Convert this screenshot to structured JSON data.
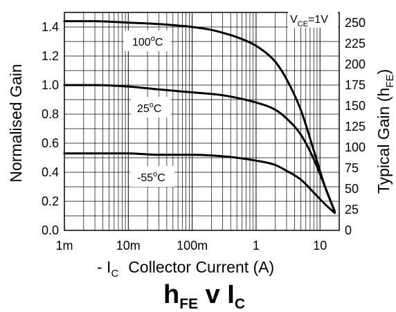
{
  "chart_data": {
    "type": "line",
    "title_main": "h",
    "title_main_sub": "FE",
    "title_mid": " v I",
    "title_end_sub": "C",
    "xlabel_prefix": "- I",
    "xlabel_sub": "C",
    "xlabel_text": "Collector Current (A)",
    "ylabel": "Normalised Gain",
    "y2label_main": "Typical Gain (h",
    "y2label_sub": "FE",
    "y2label_end": ")",
    "x_scale": "log",
    "xlim": [
      0.001,
      20
    ],
    "ylim": [
      0,
      1.5
    ],
    "y2lim": [
      0,
      262.5
    ],
    "grid": true,
    "x_ticks": [
      {
        "value": 0.001,
        "label": "1m"
      },
      {
        "value": 0.01,
        "label": "10m"
      },
      {
        "value": 0.1,
        "label": "100m"
      },
      {
        "value": 1,
        "label": "1"
      },
      {
        "value": 10,
        "label": "10"
      }
    ],
    "y_ticks": [
      {
        "value": 0.0,
        "label": "0.0"
      },
      {
        "value": 0.2,
        "label": "0.2"
      },
      {
        "value": 0.4,
        "label": "0.4"
      },
      {
        "value": 0.6,
        "label": "0.6"
      },
      {
        "value": 0.8,
        "label": "0.8"
      },
      {
        "value": 1.0,
        "label": "1.0"
      },
      {
        "value": 1.2,
        "label": "1.2"
      },
      {
        "value": 1.4,
        "label": "1.4"
      }
    ],
    "y2_ticks": [
      {
        "value": 0,
        "label": "0"
      },
      {
        "value": 25,
        "label": "25"
      },
      {
        "value": 50,
        "label": "50"
      },
      {
        "value": 75,
        "label": "75"
      },
      {
        "value": 100,
        "label": "100"
      },
      {
        "value": 125,
        "label": "125"
      },
      {
        "value": 150,
        "label": "150"
      },
      {
        "value": 175,
        "label": "175"
      },
      {
        "value": 200,
        "label": "200"
      },
      {
        "value": 225,
        "label": "225"
      },
      {
        "value": 250,
        "label": "250"
      }
    ],
    "annotation": {
      "main": "V",
      "sub": "CE",
      "end": "=1V"
    },
    "series": [
      {
        "name": "100°C",
        "label_main": "100",
        "label_sup": "o",
        "label_end": "C",
        "x": [
          0.001,
          0.003,
          0.01,
          0.03,
          0.1,
          0.2,
          0.3,
          0.5,
          1,
          2,
          3,
          5,
          8,
          12,
          17
        ],
        "y": [
          1.44,
          1.44,
          1.43,
          1.42,
          1.4,
          1.38,
          1.36,
          1.33,
          1.27,
          1.16,
          1.04,
          0.83,
          0.55,
          0.3,
          0.13
        ]
      },
      {
        "name": "25°C",
        "label_main": "25",
        "label_sup": "o",
        "label_end": "C",
        "x": [
          0.001,
          0.003,
          0.01,
          0.03,
          0.1,
          0.3,
          1,
          2,
          3,
          5,
          8,
          12,
          17
        ],
        "y": [
          1.0,
          1.0,
          0.99,
          0.97,
          0.95,
          0.93,
          0.88,
          0.83,
          0.77,
          0.66,
          0.49,
          0.3,
          0.13
        ]
      },
      {
        "name": "-55°C",
        "label_main": "-55",
        "label_sup": "o",
        "label_end": "C",
        "x": [
          0.001,
          0.003,
          0.01,
          0.03,
          0.1,
          0.3,
          0.5,
          1,
          2,
          3,
          5,
          8,
          12,
          17
        ],
        "y": [
          0.53,
          0.53,
          0.53,
          0.52,
          0.52,
          0.51,
          0.5,
          0.48,
          0.45,
          0.41,
          0.35,
          0.26,
          0.18,
          0.12
        ]
      }
    ]
  }
}
